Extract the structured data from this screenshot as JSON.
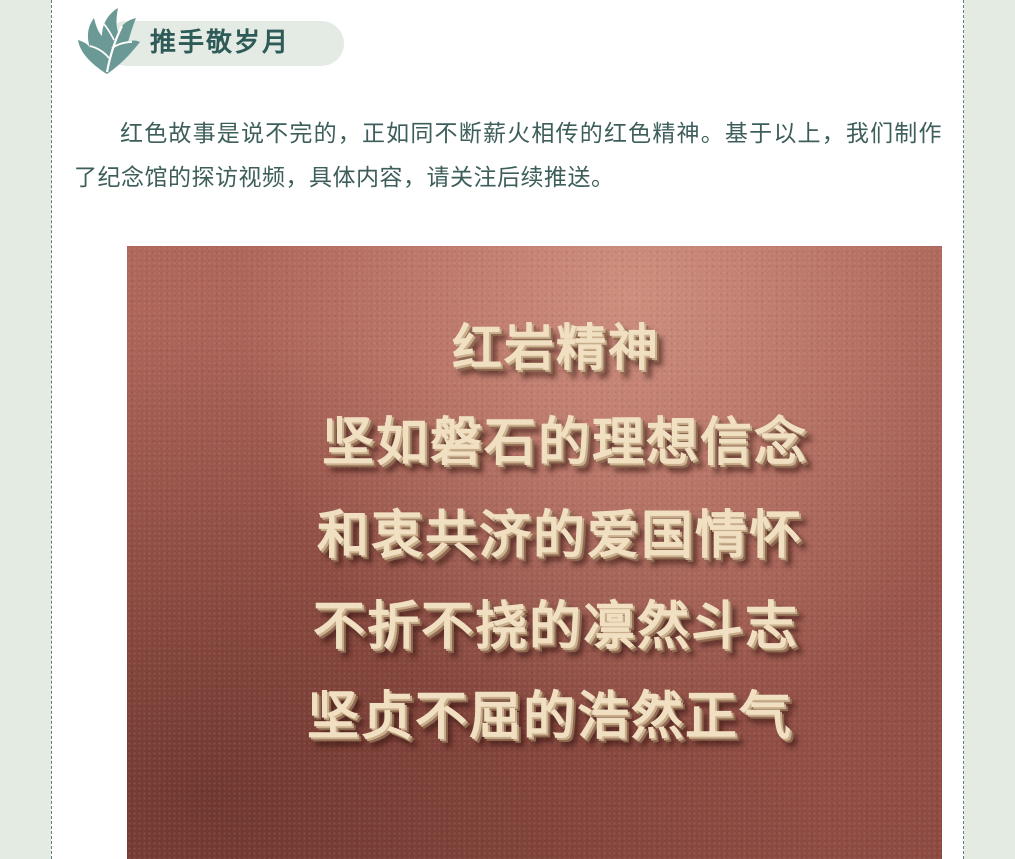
{
  "section": {
    "title": "推手敬岁月",
    "icon": "leaf-icon",
    "accent_color": "#6b9a96",
    "pill_color": "#e4ebe4"
  },
  "article": {
    "paragraph": "红色故事是说不完的，正如同不断薪火相传的红色精神。基于以上，我们制作了纪念馆的探访视频，具体内容，请关注后续推送。"
  },
  "photo": {
    "title": "红岩精神",
    "lines": [
      "坚如磐石的理想信念",
      "和衷共济的爱国情怀",
      "不折不挠的凛然斗志",
      "坚贞不屈的浩然正气"
    ]
  }
}
